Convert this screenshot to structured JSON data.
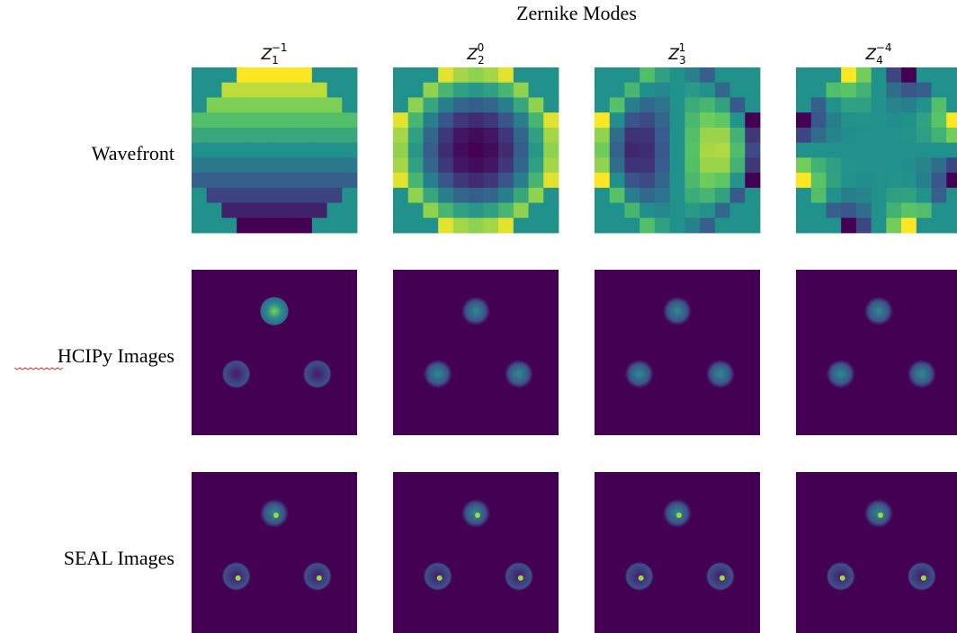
{
  "title": "Zernike Modes",
  "columns": [
    {
      "symbol": "Z",
      "sub": "1",
      "sup": "−1"
    },
    {
      "symbol": "Z",
      "sub": "2",
      "sup": "0"
    },
    {
      "symbol": "Z",
      "sub": "3",
      "sup": "1"
    },
    {
      "symbol": "Z",
      "sub": "4",
      "sup": "−4"
    }
  ],
  "rows": [
    "Wavefront",
    "HCIPy Images",
    "SEAL Images"
  ]
}
